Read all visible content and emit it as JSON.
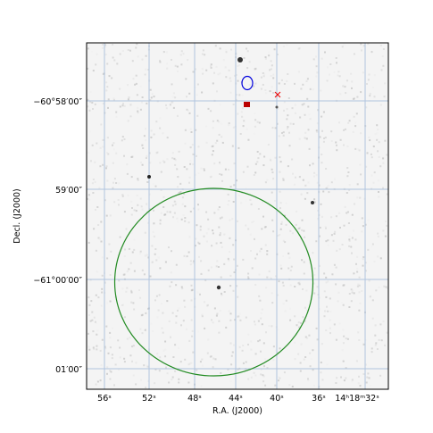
{
  "axes": {
    "x_label": "R.A. (J2000)",
    "y_label": "Decl. (J2000)",
    "x_ticks": [
      "56ˢ",
      "52ˢ",
      "48ˢ",
      "44ˢ",
      "40ˢ",
      "36ˢ",
      "14ʰ18ᵐ32ˢ"
    ],
    "y_ticks": [
      "−60°58′00″",
      "59′00″",
      "−61°00′00″",
      "01′00″"
    ]
  }
}
